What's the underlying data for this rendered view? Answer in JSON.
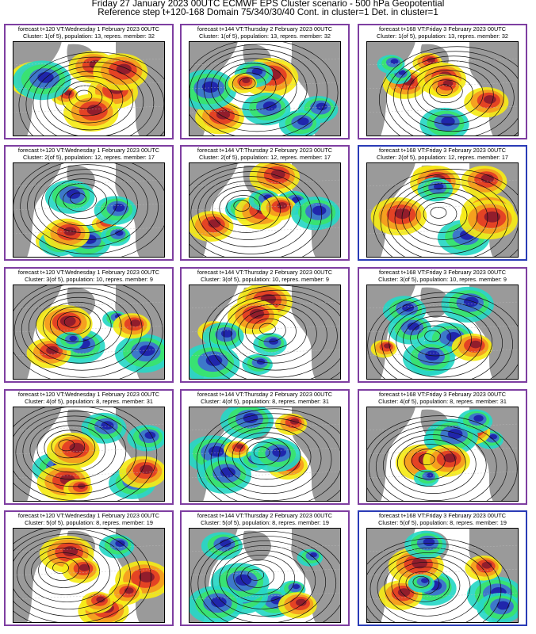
{
  "header": {
    "line1": "Friday 27 January 2023 00UTC ECMWF EPS Cluster scenario - 500 hPa Geopotential",
    "line2": "Reference step t+120-168 Domain 75/340/30/40 Cont. in cluster=1 Det. in cluster=1"
  },
  "rows": [
    {
      "panels": [
        {
          "line1": "forecast t+120 VT:Wednesday 1 February 2023 00UTC",
          "line2": "Cluster: 1(of 5), population: 13, repres. member: 32",
          "frame": "purple"
        },
        {
          "line1": "forecast t+144 VT:Thursday 2 February 2023 00UTC",
          "line2": "Cluster: 1(of 5), population: 13, repres. member: 32",
          "frame": "purple"
        },
        {
          "line1": "forecast t+168 VT:Friday 3 February 2023 00UTC",
          "line2": "Cluster: 1(of 5), population: 13, repres. member: 32",
          "frame": "purple"
        }
      ]
    },
    {
      "panels": [
        {
          "line1": "forecast t+120 VT:Wednesday 1 February 2023 00UTC",
          "line2": "Cluster: 2(of 5), population: 12, repres. member: 17",
          "frame": "purple"
        },
        {
          "line1": "forecast t+144 VT:Thursday 2 February 2023 00UTC",
          "line2": "Cluster: 2(of 5), population: 12, repres. member: 17",
          "frame": "purple"
        },
        {
          "line1": "forecast t+168 VT:Friday 3 February 2023 00UTC",
          "line2": "Cluster: 2(of 5), population: 12, repres. member: 17",
          "frame": "blue"
        }
      ]
    },
    {
      "panels": [
        {
          "line1": "forecast t+120 VT:Wednesday 1 February 2023 00UTC",
          "line2": "Cluster: 3(of 5), population: 10, repres. member: 9",
          "frame": "purple"
        },
        {
          "line1": "forecast t+144 VT:Thursday 2 February 2023 00UTC",
          "line2": "Cluster: 3(of 5), population: 10, repres. member: 9",
          "frame": "purple"
        },
        {
          "line1": "forecast t+168 VT:Friday 3 February 2023 00UTC",
          "line2": "Cluster: 3(of 5), population: 10, repres. member: 9",
          "frame": "purple"
        }
      ]
    },
    {
      "panels": [
        {
          "line1": "forecast t+120 VT:Wednesday 1 February 2023 00UTC",
          "line2": "Cluster: 4(of 5), population: 8, repres. member: 31",
          "frame": "purple"
        },
        {
          "line1": "forecast t+144 VT:Thursday 2 February 2023 00UTC",
          "line2": "Cluster: 4(of 5), population: 8, repres. member: 31",
          "frame": "purple"
        },
        {
          "line1": "forecast t+168 VT:Friday 3 February 2023 00UTC",
          "line2": "Cluster: 4(of 5), population: 8, repres. member: 31",
          "frame": "purple"
        }
      ]
    },
    {
      "panels": [
        {
          "line1": "forecast t+120 VT:Wednesday 1 February 2023 00UTC",
          "line2": "Cluster: 5(of 5), population: 8, repres. member: 19",
          "frame": "purple"
        },
        {
          "line1": "forecast t+144 VT:Thursday 2 February 2023 00UTC",
          "line2": "Cluster: 5(of 5), population: 8, repres. member: 19",
          "frame": "purple"
        },
        {
          "line1": "forecast t+168 VT:Friday 3 February 2023 00UTC",
          "line2": "Cluster: 5(of 5), population: 8, repres. member: 19",
          "frame": "blue"
        }
      ]
    }
  ],
  "colors": {
    "frame_purple": "#7e3ea1",
    "frame_blue": "#2a3bb6",
    "land": "#9a9a9a",
    "ocean": "#ffffff",
    "strong_positive": "#8b1a2e",
    "positive": "#e23b25",
    "weak_positive": "#f49a1f",
    "slight_positive": "#f5ea16",
    "slight_negative": "#27d7c5",
    "weak_negative": "#39e36c",
    "negative": "#3e6fd0",
    "strong_negative": "#1d20a9",
    "contour": "#111111"
  }
}
